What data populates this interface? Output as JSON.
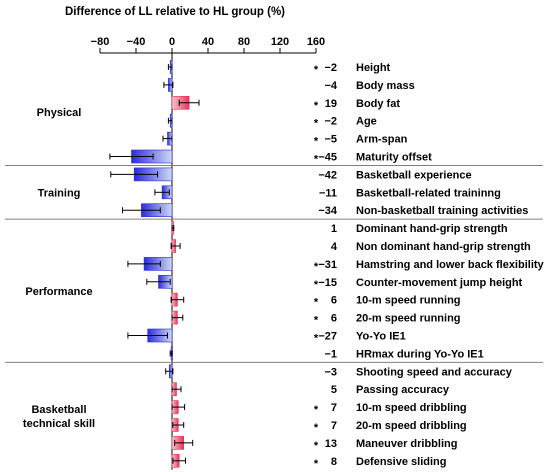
{
  "chart_data": {
    "type": "bar",
    "orientation": "horizontal",
    "title": "Difference of LL relative to HL group (%)",
    "xlim": [
      -80,
      160
    ],
    "xticks": [
      -80,
      -40,
      0,
      40,
      80,
      120,
      160
    ],
    "xtick_labels": [
      "−80",
      "−40",
      "0",
      "40",
      "80",
      "120",
      "160"
    ],
    "grid": false,
    "legend": "none",
    "colors": {
      "negative": "#2b2bdc",
      "positive": "#e8325a",
      "divider": "#808080"
    },
    "groups": [
      {
        "label": "Physical",
        "items": [
          {
            "label": "Height",
            "value": -2,
            "error": 2,
            "value_label": "−2",
            "significant": true
          },
          {
            "label": "Body mass",
            "value": -4,
            "error": 5,
            "value_label": "−4",
            "significant": false
          },
          {
            "label": "Body fat",
            "value": 19,
            "error": 11,
            "value_label": "19",
            "significant": true
          },
          {
            "label": "Age",
            "value": -2,
            "error": 2,
            "value_label": "−2",
            "significant": true
          },
          {
            "label": "Arm-span",
            "value": -5,
            "error": 5,
            "value_label": "−5",
            "significant": true
          },
          {
            "label": "Maturity offset",
            "value": -45,
            "error": 24,
            "value_label": "−45",
            "significant": true
          }
        ]
      },
      {
        "label": "Training",
        "items": [
          {
            "label": "Basketball experience",
            "value": -42,
            "error": 26,
            "value_label": "−42",
            "significant": false
          },
          {
            "label": "Basketball-related traininng",
            "value": -11,
            "error": 8,
            "value_label": "−11",
            "significant": false
          },
          {
            "label": "Non-basketball training activities",
            "value": -34,
            "error": 21,
            "value_label": "−34",
            "significant": false
          }
        ]
      },
      {
        "label": "Performance",
        "items": [
          {
            "label": "Dominant hand-grip strength",
            "value": 1,
            "error": 1,
            "value_label": "1",
            "significant": false
          },
          {
            "label": "Non dominant hand-grip strength",
            "value": 4,
            "error": 5,
            "value_label": "4",
            "significant": false
          },
          {
            "label": "Hamstring and lower back flexibility",
            "value": -31,
            "error": 18,
            "value_label": "−31",
            "significant": true
          },
          {
            "label": "Counter-movement jump height",
            "value": -15,
            "error": 13,
            "value_label": "−15",
            "significant": true
          },
          {
            "label": "10-m speed running",
            "value": 6,
            "error": 7,
            "value_label": "6",
            "significant": true
          },
          {
            "label": "20-m speed running",
            "value": 6,
            "error": 6,
            "value_label": "6",
            "significant": true
          },
          {
            "label": "Yo-Yo IE1",
            "value": -27,
            "error": 22,
            "value_label": "−27",
            "significant": true
          },
          {
            "label": "HRmax during Yo-Yo IE1",
            "value": -1,
            "error": 1,
            "value_label": "−1",
            "significant": false
          }
        ]
      },
      {
        "label": "Basketball technical skill",
        "items": [
          {
            "label": "Shooting speed and accuracy",
            "value": -3,
            "error": 4,
            "value_label": "−3",
            "significant": false
          },
          {
            "label": "Passing accuracy",
            "value": 5,
            "error": 5,
            "value_label": "5",
            "significant": false
          },
          {
            "label": "10-m speed dribbling",
            "value": 7,
            "error": 7,
            "value_label": "7",
            "significant": true
          },
          {
            "label": "20-m speed dribbling",
            "value": 7,
            "error": 6,
            "value_label": "7",
            "significant": true
          },
          {
            "label": "Maneuver dribbling",
            "value": 13,
            "error": 10,
            "value_label": "13",
            "significant": true
          },
          {
            "label": "Defensive sliding",
            "value": 8,
            "error": 7,
            "value_label": "8",
            "significant": true
          }
        ]
      }
    ]
  }
}
